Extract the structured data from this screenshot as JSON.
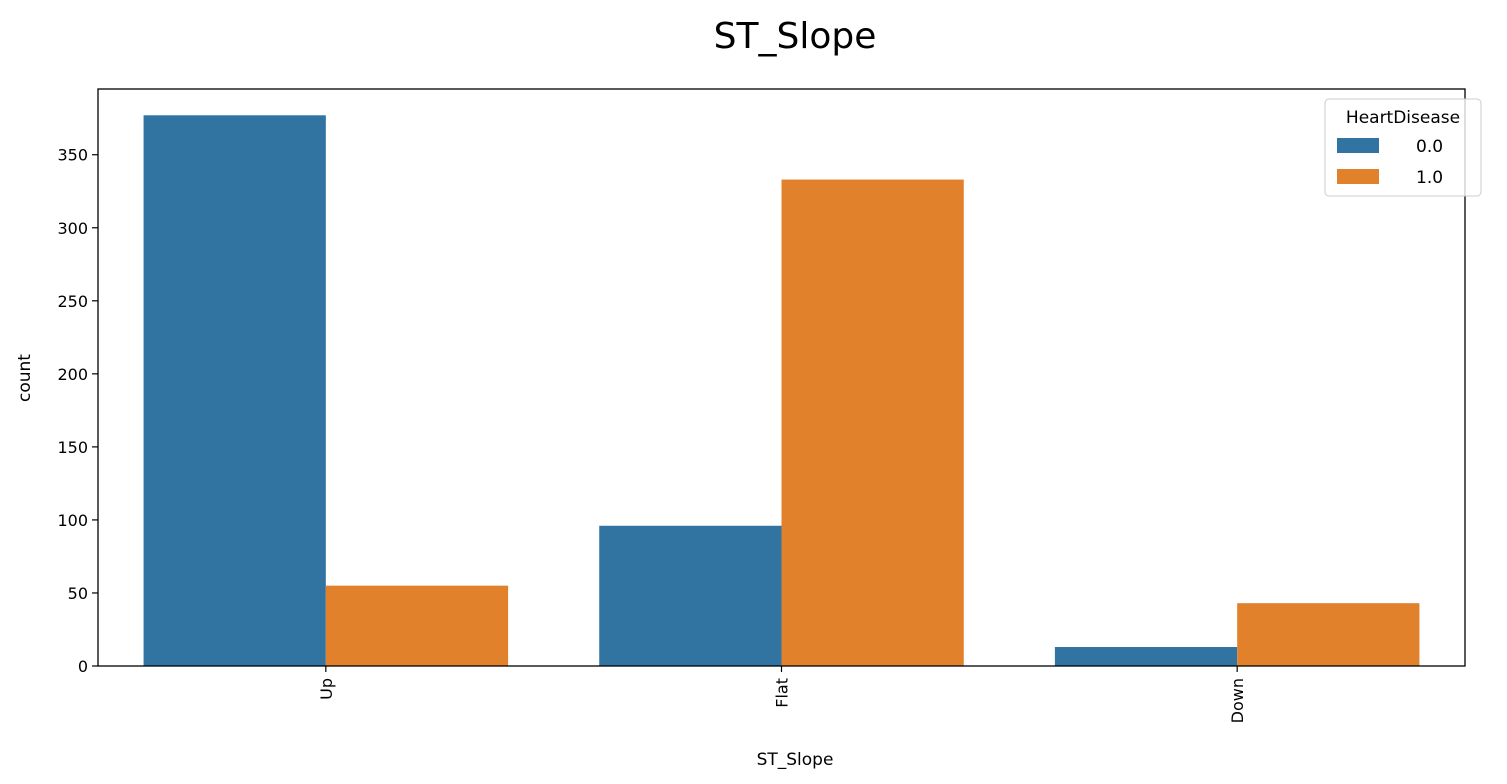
{
  "chart_data": {
    "type": "bar",
    "title": "ST_Slope",
    "xlabel": "ST_Slope",
    "ylabel": "count",
    "categories": [
      "Up",
      "Flat",
      "Down"
    ],
    "series": [
      {
        "name": "0.0",
        "color": "#3274a1",
        "values": [
          377,
          96,
          13
        ]
      },
      {
        "name": "1.0",
        "color": "#e1812c",
        "values": [
          55,
          333,
          43
        ]
      }
    ],
    "ylim": [
      0,
      395
    ],
    "yticks": [
      0,
      50,
      100,
      150,
      200,
      250,
      300,
      350
    ],
    "legend": {
      "title": "HeartDisease",
      "position": "top-right"
    },
    "grid": false
  }
}
